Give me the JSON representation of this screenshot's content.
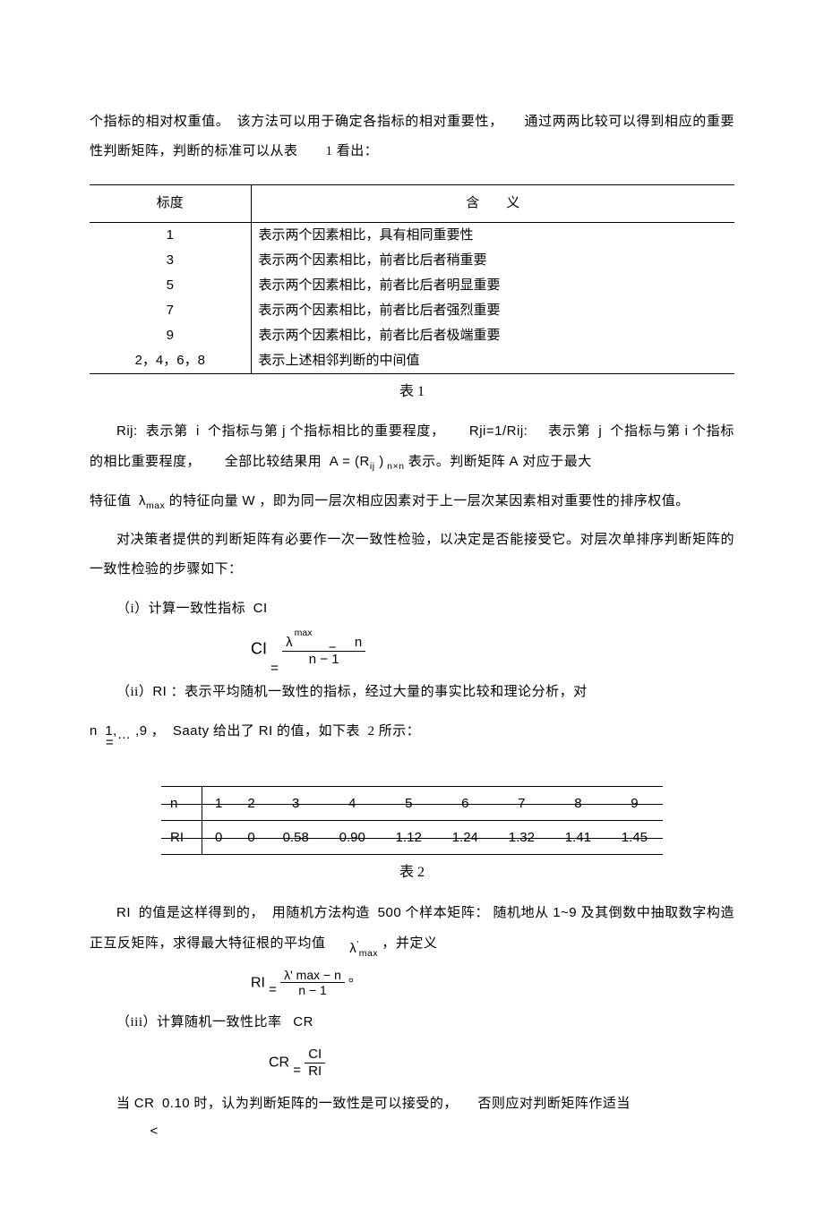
{
  "intro": {
    "p1": "个指标的相对权重值。　该方法可以用于确定各指标的相对重要性，　　通过两两比较可以得到相应的重要性判断矩阵，判断的标准可以从表　　1 看出："
  },
  "table1": {
    "header_left": "标度",
    "header_right": "含　　义",
    "rows": [
      {
        "scale": "1",
        "meaning": "表示两个因素相比，具有相同重要性"
      },
      {
        "scale": "3",
        "meaning": "表示两个因素相比，前者比后者稍重要"
      },
      {
        "scale": "5",
        "meaning": "表示两个因素相比，前者比后者明显重要"
      },
      {
        "scale": "7",
        "meaning": "表示两个因素相比，前者比后者强烈重要"
      },
      {
        "scale": "9",
        "meaning": "表示两个因素相比，前者比后者极端重要"
      },
      {
        "scale": "2，4，6，8",
        "meaning": "表示上述相邻判断的中间值"
      }
    ],
    "caption": "表 1"
  },
  "p_rij": "Rij:  表示第　i  个指标与第 j 个指标相比的重要程度，　　Rji=1/Rij:　　表示第　j  个指标与第 i 个指标的相比重要程度，　　全部比较结果用　A = (Rij ) n×n 表示。判断矩阵  A 对应于最大",
  "p_lambda": "特征值  λmax  的特征向量  W ，即为同一层次相应因素对于上一层次某因素相对重要性的排序权值。",
  "p_check": "对决策者提供的判断矩阵有必要作一次一致性检验，以决定是否能接受它。对层次单排序判断矩阵的一致性检验的步骤如下：",
  "p_i": "（i）计算一致性指标　CI",
  "eq_CI": {
    "lhs": "CI",
    "eq": "=",
    "num_l": "λ",
    "num_sup": "max",
    "num_r": "n",
    "num_minus": "−",
    "den": "n − 1"
  },
  "p_ii": "（ii）RI ：表示平均随机一致性的指标，经过大量的事实比较和理论分析，对",
  "p_ii_2": "n　1,… ,9 ，　Saaty 给出了  RI 的值，如下表　2 所示：",
  "p_ii_2_eq": "=",
  "table2": {
    "head_n": "n",
    "head_ri": "RI",
    "n_values": [
      "1",
      "2",
      "3",
      "4",
      "5",
      "6",
      "7",
      "8",
      "9"
    ],
    "ri_values": [
      "0",
      "0",
      "0.58",
      "0.90",
      "1.12",
      "1.24",
      "1.32",
      "1.41",
      "1.45"
    ],
    "caption": "表 2"
  },
  "p_ri_explain": "RI　的值是这样得到的，　用随机方法构造　500 个样本矩阵：　随机地从 1~9 及其倒数中抽取数字构造正互反矩阵，求得最大特征根的平均值　　　λ'max ，并定义",
  "eq_RI": {
    "lhs": "RI",
    "eq": "=",
    "num": "λ' max − n",
    "den": "n − 1",
    "tail": "。"
  },
  "p_iii": "（iii）计算随机一致性比率　　CR",
  "eq_CR": {
    "lhs": "CR",
    "eq": "=",
    "num": "CI",
    "den": "RI"
  },
  "p_final_a": "当 CR　0.10 时，认为判断矩阵的一致性是可以接受的，　　否则应对判断矩阵作适当",
  "p_final_lt": "<",
  "colors": {
    "text": "#000000",
    "background": "#ffffff",
    "border": "#000000"
  },
  "fonts": {
    "body": "SimSun/宋体 serif",
    "math": "Arial sans-serif",
    "body_size_pt": 11,
    "line_height": 2.2
  }
}
